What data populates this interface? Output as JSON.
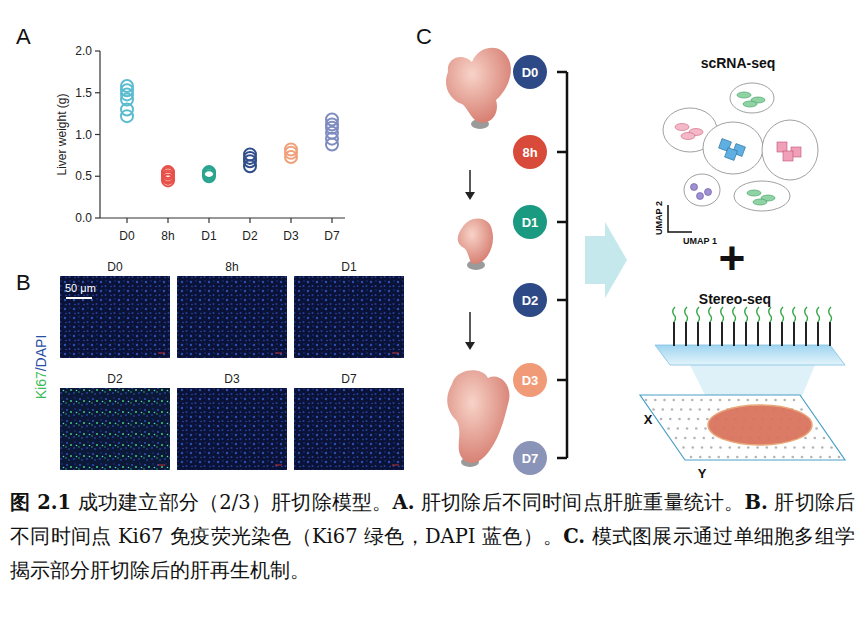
{
  "chart_data": {
    "type": "scatter",
    "label": "A",
    "y_label": "Liver weight (g)",
    "categories": [
      "D0",
      "8h",
      "D1",
      "D2",
      "D3",
      "D7"
    ],
    "values": [
      [
        1.22,
        1.3,
        1.42,
        1.48,
        1.53,
        1.58
      ],
      [
        0.45,
        0.48,
        0.5,
        0.53,
        0.55
      ],
      [
        0.5,
        0.52,
        0.54,
        0.55
      ],
      [
        0.62,
        0.68,
        0.72,
        0.76
      ],
      [
        0.73,
        0.78,
        0.82
      ],
      [
        0.88,
        0.95,
        1.02,
        1.08,
        1.12,
        1.18
      ]
    ],
    "colors": [
      "#5bbccf",
      "#e8504a",
      "#2aa58f",
      "#2f4e8a",
      "#f0a07a",
      "#7f8cc0"
    ],
    "marker": "open-circle",
    "ylim": [
      0,
      2
    ],
    "yticks": [
      {
        "value": 0,
        "label": "0.0"
      },
      0.5,
      {
        "value": 1,
        "label": "1.0"
      },
      1.5,
      {
        "value": 2,
        "label": "2.0"
      }
    ],
    "grid": false
  },
  "panel_b": {
    "label": "B",
    "y_label_parts": [
      {
        "text": "Ki67",
        "color": "#3dbb5a"
      },
      {
        "text": "/DAPI",
        "color": "#2b4fa0"
      }
    ],
    "scale_bar": "50 μm",
    "images": [
      {
        "title": "D0",
        "ki67": false
      },
      {
        "title": "8h",
        "ki67": false
      },
      {
        "title": "D1",
        "ki67": false
      },
      {
        "title": "D2",
        "ki67": true
      },
      {
        "title": "D3",
        "ki67": false
      },
      {
        "title": "D7",
        "ki67": false
      }
    ]
  },
  "panel_c": {
    "label": "C",
    "nodes": [
      {
        "label": "D0",
        "color": "#2d4a86"
      },
      {
        "label": "8h",
        "color": "#d84a3a"
      },
      {
        "label": "D1",
        "color": "#1a9a80"
      },
      {
        "label": "D2",
        "color": "#2d4a86"
      },
      {
        "label": "D3",
        "color": "#f09a78"
      },
      {
        "label": "D7",
        "color": "#8a94b8"
      }
    ],
    "scrna_title": "scRNA-seq",
    "umap_x": "UMAP 1",
    "umap_y": "UMAP 2",
    "plus": "+",
    "stereo_title": "Stereo-seq",
    "axis_x": "X",
    "axis_y": "Y"
  },
  "caption": [
    {
      "text": "图 2.1",
      "bold": true
    },
    {
      "text": " 成功建立部分（2/3）肝切除模型。"
    },
    {
      "text": "A.",
      "bold": true
    },
    {
      "text": " 肝切除后不同时间点肝脏重量统计。"
    },
    {
      "text": "B.",
      "bold": true
    },
    {
      "text": " 肝切除后不同时间点 Ki67 免疫荧光染色（Ki67 绿色，DAPI 蓝色）。"
    },
    {
      "text": "C.",
      "bold": true
    },
    {
      "text": " 模式图展示通过单细胞多组学揭示部分肝切除后的肝再生机制。"
    }
  ]
}
